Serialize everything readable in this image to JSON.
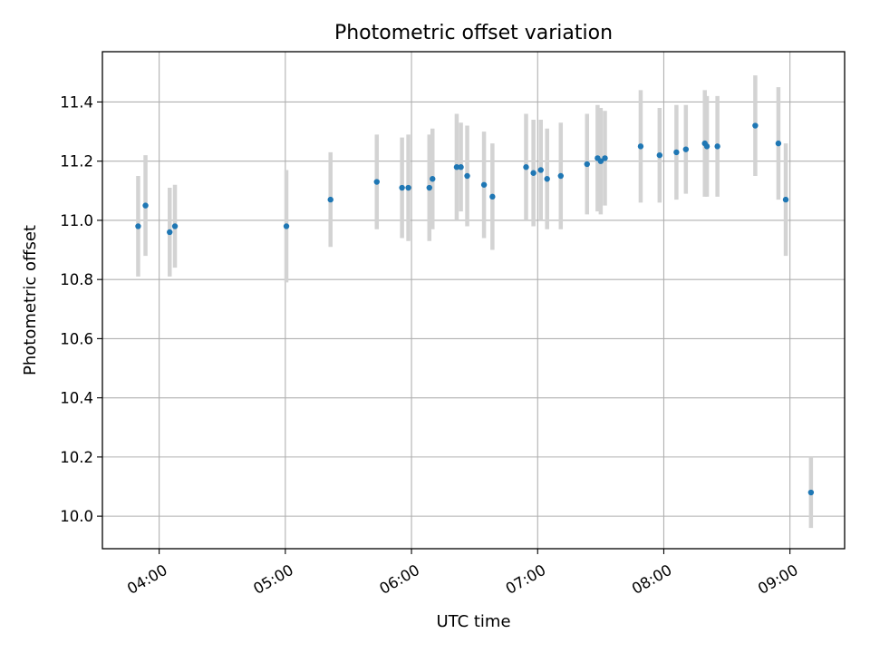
{
  "chart_data": {
    "type": "scatter",
    "title": "Photometric offset variation",
    "xlabel": "UTC time",
    "ylabel": "Photometric offset",
    "x_unit": "UTC time of day",
    "xlim": [
      "03:33",
      "09:26"
    ],
    "ylim": [
      9.89,
      11.57
    ],
    "x_ticks": [
      "04:00",
      "05:00",
      "06:00",
      "07:00",
      "08:00",
      "09:00"
    ],
    "y_ticks": [
      "10.0",
      "10.2",
      "10.4",
      "10.6",
      "10.8",
      "11.0",
      "11.2",
      "11.4"
    ],
    "grid": true,
    "legend": "none",
    "colors": {
      "points": "#1f77b4",
      "error_bars": "#d3d3d3",
      "grid": "#b0b0b0"
    },
    "points": [
      {
        "x": "03:50:00",
        "y": 10.98,
        "yerr": 0.17
      },
      {
        "x": "03:53:30",
        "y": 11.05,
        "yerr": 0.17
      },
      {
        "x": "04:05:00",
        "y": 10.96,
        "yerr": 0.15
      },
      {
        "x": "04:07:30",
        "y": 10.98,
        "yerr": 0.14
      },
      {
        "x": "05:00:30",
        "y": 10.98,
        "yerr": 0.19
      },
      {
        "x": "05:21:30",
        "y": 11.07,
        "yerr": 0.16
      },
      {
        "x": "05:43:30",
        "y": 11.13,
        "yerr": 0.16
      },
      {
        "x": "05:55:30",
        "y": 11.11,
        "yerr": 0.17
      },
      {
        "x": "05:58:30",
        "y": 11.11,
        "yerr": 0.18
      },
      {
        "x": "06:08:30",
        "y": 11.11,
        "yerr": 0.18
      },
      {
        "x": "06:10:00",
        "y": 11.14,
        "yerr": 0.17
      },
      {
        "x": "06:21:30",
        "y": 11.18,
        "yerr": 0.18
      },
      {
        "x": "06:23:30",
        "y": 11.18,
        "yerr": 0.15
      },
      {
        "x": "06:26:30",
        "y": 11.15,
        "yerr": 0.17
      },
      {
        "x": "06:34:30",
        "y": 11.12,
        "yerr": 0.18
      },
      {
        "x": "06:38:30",
        "y": 11.08,
        "yerr": 0.18
      },
      {
        "x": "06:54:30",
        "y": 11.18,
        "yerr": 0.18
      },
      {
        "x": "06:58:00",
        "y": 11.16,
        "yerr": 0.18
      },
      {
        "x": "07:01:30",
        "y": 11.17,
        "yerr": 0.17
      },
      {
        "x": "07:04:30",
        "y": 11.14,
        "yerr": 0.17
      },
      {
        "x": "07:11:00",
        "y": 11.15,
        "yerr": 0.18
      },
      {
        "x": "07:23:30",
        "y": 11.19,
        "yerr": 0.17
      },
      {
        "x": "07:28:30",
        "y": 11.21,
        "yerr": 0.18
      },
      {
        "x": "07:30:00",
        "y": 11.2,
        "yerr": 0.18
      },
      {
        "x": "07:32:00",
        "y": 11.21,
        "yerr": 0.16
      },
      {
        "x": "07:49:00",
        "y": 11.25,
        "yerr": 0.19
      },
      {
        "x": "07:58:00",
        "y": 11.22,
        "yerr": 0.16
      },
      {
        "x": "08:06:00",
        "y": 11.23,
        "yerr": 0.16
      },
      {
        "x": "08:10:30",
        "y": 11.24,
        "yerr": 0.15
      },
      {
        "x": "08:19:30",
        "y": 11.26,
        "yerr": 0.18
      },
      {
        "x": "08:20:30",
        "y": 11.25,
        "yerr": 0.17
      },
      {
        "x": "08:25:30",
        "y": 11.25,
        "yerr": 0.17
      },
      {
        "x": "08:43:30",
        "y": 11.32,
        "yerr": 0.17
      },
      {
        "x": "08:54:30",
        "y": 11.26,
        "yerr": 0.19
      },
      {
        "x": "08:58:00",
        "y": 11.07,
        "yerr": 0.19
      },
      {
        "x": "09:10:00",
        "y": 10.08,
        "yerr": 0.12
      }
    ]
  }
}
